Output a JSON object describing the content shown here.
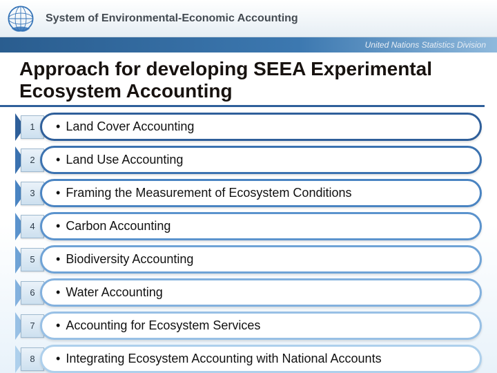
{
  "header": {
    "title": "System of Environmental-Economic Accounting",
    "logo_color": "#3473b7"
  },
  "subheader": {
    "text": "United Nations Statistics Division",
    "bg_gradient_from": "#2a5d8f",
    "bg_gradient_to": "#8fb9dc",
    "text_color": "#e8eef5"
  },
  "title": "Approach for developing SEEA Experimental Ecosystem Accounting",
  "title_underline_color": "#2f5f9a",
  "list": {
    "type": "numbered-pill-list",
    "item_fontsize": 18,
    "number_fontsize": 13,
    "pill_bg": "#ffffff",
    "badge_bg_from": "#eaf2f9",
    "badge_bg_to": "#cde0ef",
    "items": [
      {
        "n": "1",
        "label": "Land Cover Accounting",
        "border_color": "#2f5f9a",
        "chevron_color": "#2f5f9a"
      },
      {
        "n": "2",
        "label": "Land Use Accounting",
        "border_color": "#3b72b0",
        "chevron_color": "#3b72b0"
      },
      {
        "n": "3",
        "label": "Framing the Measurement of Ecosystem Conditions",
        "border_color": "#4a84c2",
        "chevron_color": "#4a84c2"
      },
      {
        "n": "4",
        "label": "Carbon Accounting",
        "border_color": "#5b93cd",
        "chevron_color": "#5b93cd"
      },
      {
        "n": "5",
        "label": "Biodiversity Accounting",
        "border_color": "#6fa3d6",
        "chevron_color": "#6fa3d6"
      },
      {
        "n": "6",
        "label": "Water Accounting",
        "border_color": "#83b1de",
        "chevron_color": "#83b1de"
      },
      {
        "n": "7",
        "label": "Accounting for Ecosystem Services",
        "border_color": "#98c0e5",
        "chevron_color": "#98c0e5"
      },
      {
        "n": "8",
        "label": "Integrating Ecosystem Accounting with National Accounts",
        "border_color": "#aed0ec",
        "chevron_color": "#aed0ec"
      }
    ]
  },
  "background": {
    "top": "#ffffff",
    "bottom": "#e8f2fa"
  }
}
